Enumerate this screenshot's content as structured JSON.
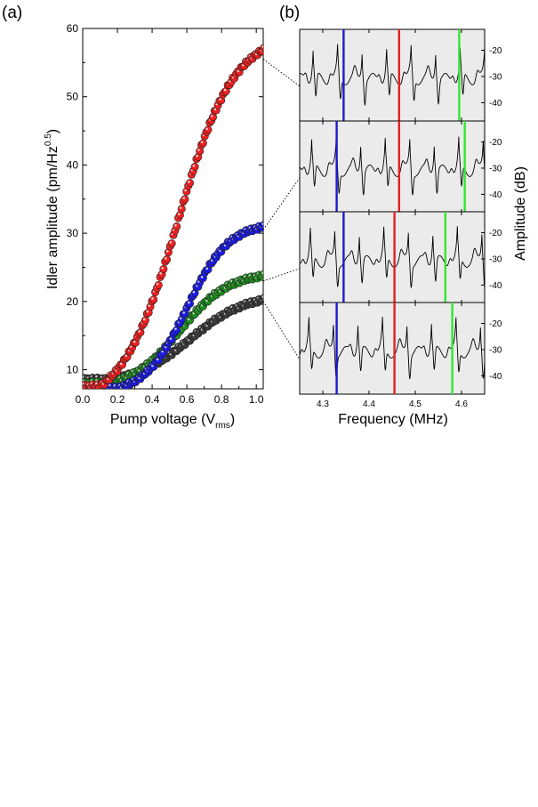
{
  "panels": {
    "a_label": "(a)",
    "b_label": "(b)"
  },
  "colors": {
    "red": "#ef1f1f",
    "blue": "#1a1ae6",
    "green": "#1f8f1f",
    "gray": "#3a3a3a",
    "line_red": "#e62020",
    "line_blue": "#1a1ad6",
    "line_green": "#33e633",
    "panel_bg": "#ebebeb"
  },
  "chart_data": [
    {
      "type": "scatter",
      "title": "",
      "xlabel_main": "Pump voltage (V",
      "xlabel_sub": "rms",
      "xlabel_end": ")",
      "ylabel_main": "Idler amplitude (pm/Hz",
      "ylabel_sup": "0.5",
      "ylabel_end": ")",
      "xlim": [
        0.0,
        1.04
      ],
      "ylim": [
        7.2,
        60
      ],
      "xticks": [
        "0.0",
        "0.2",
        "0.4",
        "0.6",
        "0.8",
        "1.0"
      ],
      "yticks": [
        "10",
        "20",
        "30",
        "40",
        "50",
        "60"
      ],
      "series": [
        {
          "name": "gray",
          "color_key": "gray",
          "start": 8.6,
          "threshold": 0.16,
          "plateau": 20.3,
          "mid": 0.62,
          "width": 0.16
        },
        {
          "name": "green",
          "color_key": "green",
          "start": 8.0,
          "threshold": 0.14,
          "plateau": 23.8,
          "mid": 0.56,
          "width": 0.14
        },
        {
          "name": "blue",
          "color_key": "blue",
          "start": 7.3,
          "threshold": 0.2,
          "plateau": 31.0,
          "mid": 0.6,
          "width": 0.12
        },
        {
          "name": "red",
          "color_key": "red",
          "start": 7.6,
          "threshold": 0.1,
          "plateau": 57.0,
          "mid": 0.55,
          "width": 0.16
        }
      ]
    },
    {
      "type": "line",
      "title": "",
      "xlabel": "Frequency (MHz)",
      "ylabel": "Amplitude (dB)",
      "xlim": [
        4.25,
        4.65
      ],
      "ylim": [
        -47,
        -12
      ],
      "xticks": [
        "4.3",
        "4.4",
        "4.5",
        "4.6"
      ],
      "yticks": [
        "-20",
        "-30",
        "-40"
      ],
      "comb_spacing_mhz": 0.053,
      "subpanels": [
        {
          "blue": 4.345,
          "red": 4.465,
          "green": 4.595,
          "pump_voltage": 1.02,
          "idler_value": 55.5
        },
        {
          "blue": 4.33,
          "red": 4.465,
          "green": 4.607,
          "pump_voltage": 1.02,
          "idler_value": 30.5
        },
        {
          "blue": 4.345,
          "red": 4.455,
          "green": 4.565,
          "pump_voltage": 1.02,
          "idler_value": 23.0
        },
        {
          "blue": 4.33,
          "red": 4.455,
          "green": 4.58,
          "pump_voltage": 1.02,
          "idler_value": 20.0
        }
      ]
    }
  ]
}
